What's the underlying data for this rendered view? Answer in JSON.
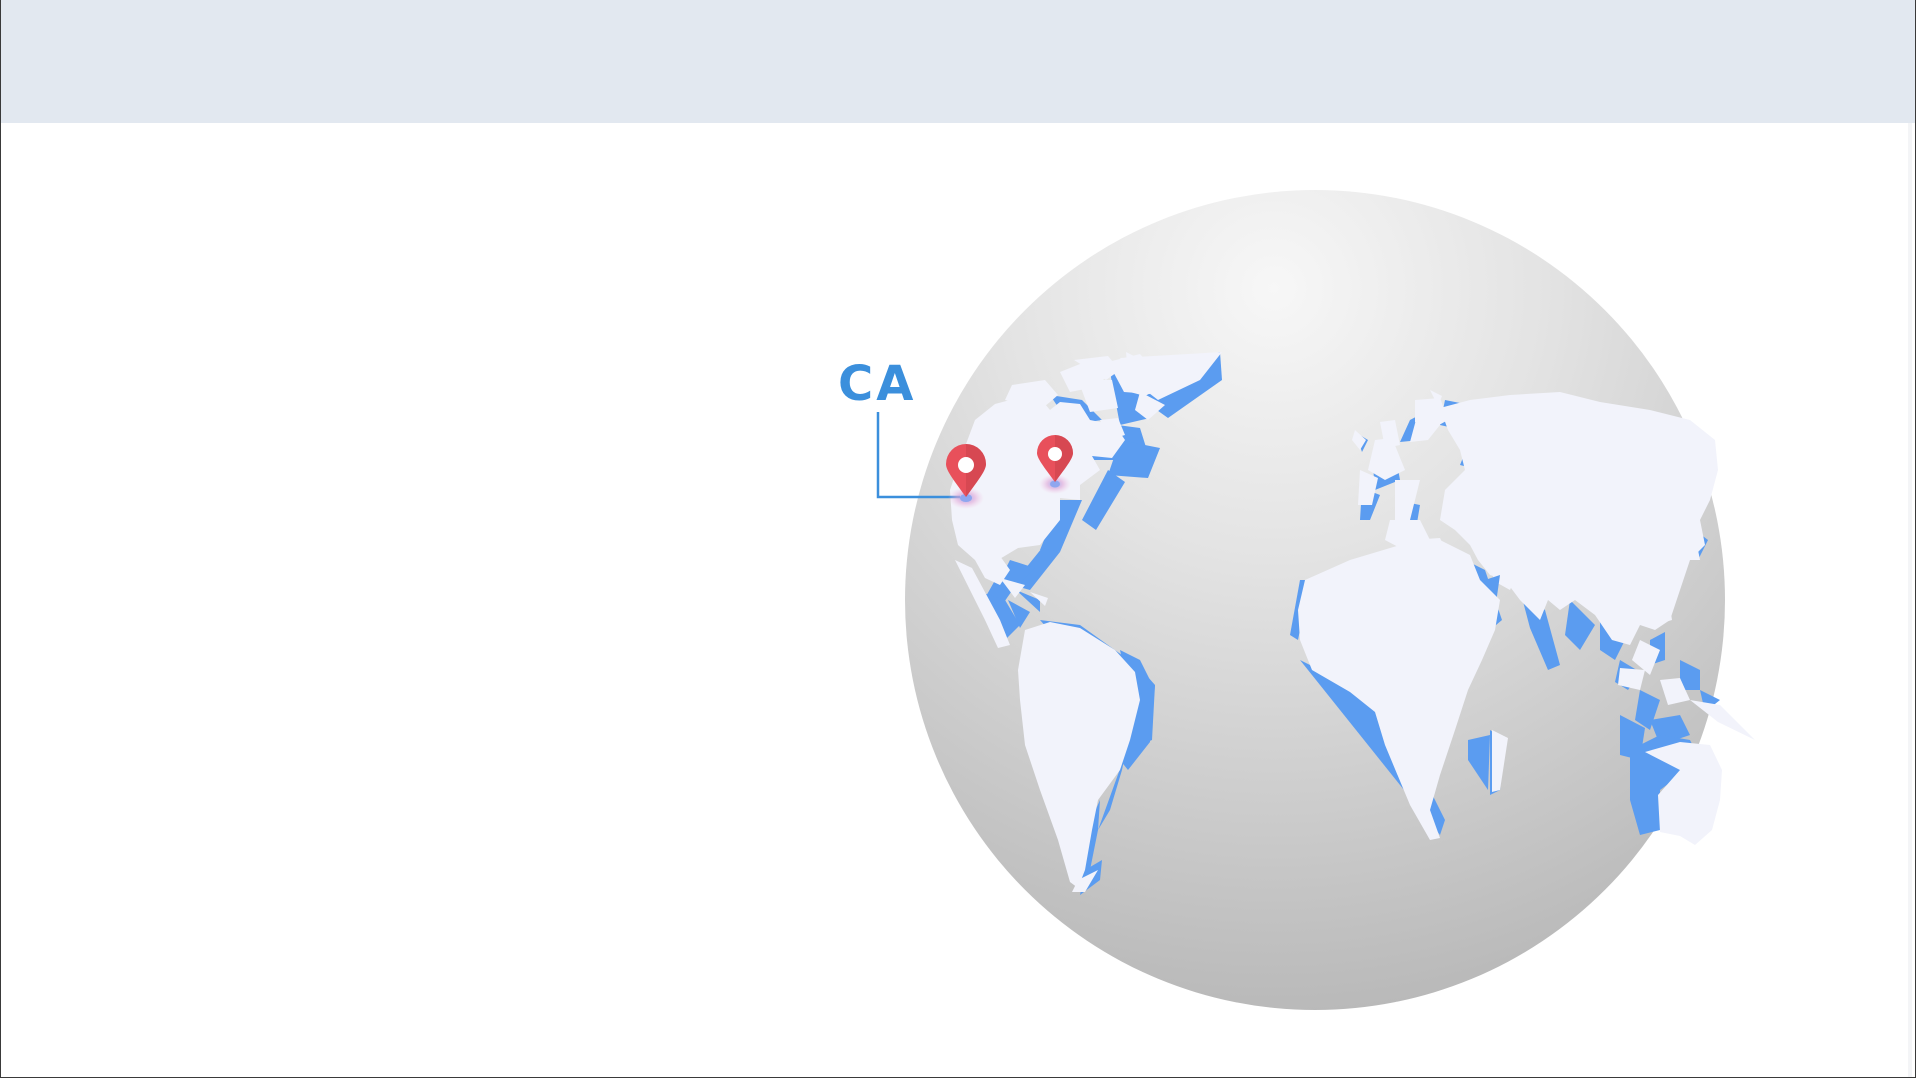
{
  "header": {
    "color": "#e2e8f0"
  },
  "globe": {
    "highlight_color": "#f6f6f6",
    "shadow_color": "#b9b9b9",
    "land_color": "#f1f2fb",
    "land_edge_color": "#5b9cf0"
  },
  "callout": {
    "label": "CA",
    "color": "#3b8fdc"
  },
  "markers": [
    {
      "name": "california-pin",
      "color": "#e8505b"
    },
    {
      "name": "east-coast-pin",
      "color": "#e8505b"
    }
  ]
}
